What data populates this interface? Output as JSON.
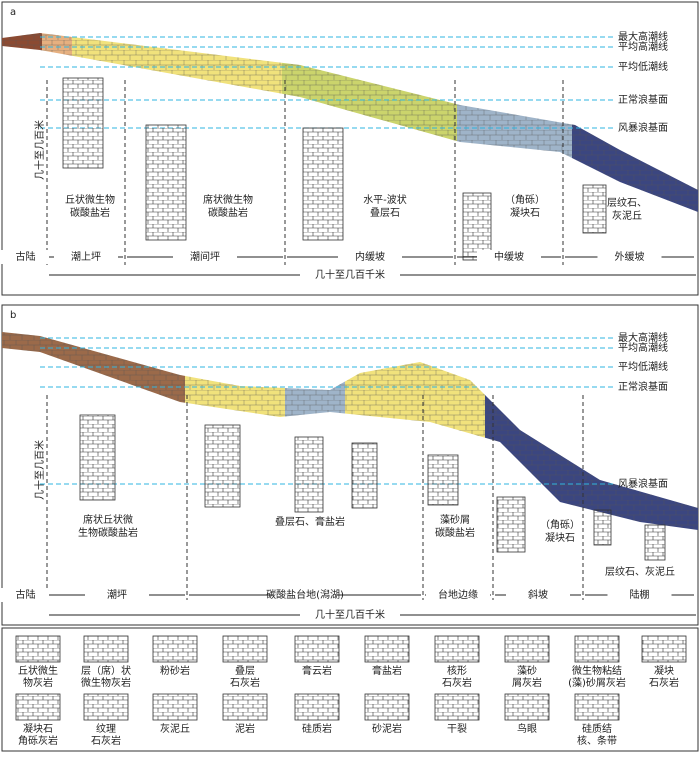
{
  "panels": [
    {
      "label": "a",
      "levels": [
        "最大高潮线",
        "平均高潮线",
        "平均低潮线",
        "正常浪基面",
        "风暴浪基面"
      ],
      "height_label": "几十至几百米",
      "facies": [
        {
          "lines": [
            "丘状微生物",
            "碳酸盐岩"
          ]
        },
        {
          "lines": [
            "席状微生物",
            "碳酸盐岩"
          ]
        },
        {
          "lines": [
            "水平-波状",
            "叠层石"
          ]
        },
        {
          "lines": [
            "（角砾）",
            "凝块石"
          ]
        },
        {
          "lines": [
            "层纹石、",
            "灰泥丘"
          ]
        }
      ],
      "zones": [
        "古陆",
        "潮上坪",
        "潮间坪",
        "内缓坡",
        "中缓坡",
        "外缓坡"
      ],
      "width_label": "几十至几百千米"
    },
    {
      "label": "b",
      "levels": [
        "最大高潮线",
        "平均高潮线",
        "平均低潮线",
        "正常浪基面",
        "风暴浪基面"
      ],
      "height_label": "几十至几百米",
      "facies": [
        {
          "lines": [
            "席状丘状微",
            "生物碳酸盐岩"
          ]
        },
        {
          "lines": [
            "叠层石、膏盐岩"
          ]
        },
        {
          "lines": [
            "藻砂屑",
            "碳酸盐岩"
          ]
        },
        {
          "lines": [
            "（角砾）",
            "凝块石"
          ]
        },
        {
          "lines": [
            "层纹石、灰泥丘"
          ]
        }
      ],
      "zones": [
        "古陆",
        "潮坪",
        "碳酸盐台地(潟湖)",
        "台地边缘",
        "斜坡",
        "陆棚"
      ],
      "width_label": "几十至几百千米"
    }
  ],
  "legend": [
    {
      "lines": [
        "丘状微生",
        "物灰岩"
      ]
    },
    {
      "lines": [
        "层（席）状",
        "微生物灰岩"
      ]
    },
    {
      "lines": [
        "粉砂岩"
      ]
    },
    {
      "lines": [
        "叠层",
        "石灰岩"
      ]
    },
    {
      "lines": [
        "膏云岩"
      ]
    },
    {
      "lines": [
        "膏盐岩"
      ]
    },
    {
      "lines": [
        "核形",
        "石灰岩"
      ]
    },
    {
      "lines": [
        "藻砂",
        "屑灰岩"
      ]
    },
    {
      "lines": [
        "微生物粘结",
        "(藻)砂屑灰岩"
      ]
    },
    {
      "lines": [
        "凝块",
        "石灰岩"
      ]
    },
    {
      "lines": [
        "凝块石",
        "角砾灰岩"
      ]
    },
    {
      "lines": [
        "纹理",
        "石灰岩"
      ]
    },
    {
      "lines": [
        "灰泥丘"
      ]
    },
    {
      "lines": [
        "泥岩"
      ]
    },
    {
      "lines": [
        "硅质岩"
      ]
    },
    {
      "lines": [
        "砂泥岩"
      ]
    },
    {
      "lines": [
        "干裂"
      ]
    },
    {
      "lines": [
        "鸟眼"
      ]
    },
    {
      "lines": [
        "硅质结",
        "核、条带"
      ]
    }
  ]
}
